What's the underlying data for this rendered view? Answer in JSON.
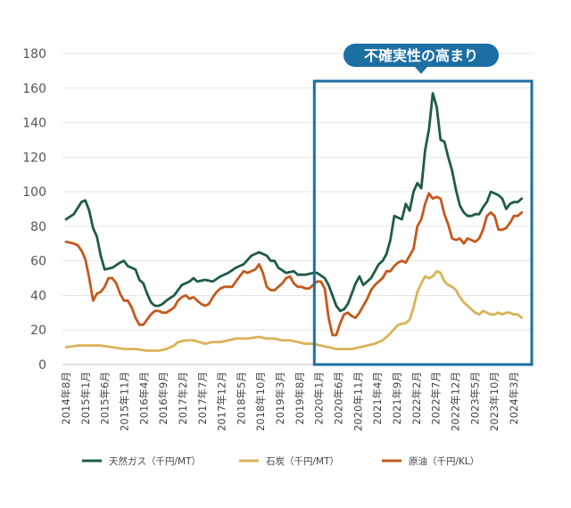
{
  "chart_data": {
    "type": "line",
    "title": "",
    "xlabel": "",
    "ylabel": "",
    "ylim": [
      0,
      180
    ],
    "yticks": [
      0,
      20,
      40,
      60,
      80,
      100,
      120,
      140,
      160,
      180
    ],
    "grid": true,
    "legend_position": "bottom",
    "x_start": "2014-08",
    "x_end": "2024-07",
    "x_tick_labels": [
      "2014年8月",
      "2015年1月",
      "2015年6月",
      "2015年11月",
      "2016年4月",
      "2016年9月",
      "2017年2月",
      "2017年7月",
      "2017年12月",
      "2018年5月",
      "2018年10月",
      "2019年3月",
      "2019年8月",
      "2020年1月",
      "2020年6月",
      "2020年11月",
      "2021年4月",
      "2021年9月",
      "2022年2月",
      "2022年7月",
      "2022年12月",
      "2023年5月",
      "2023年10月",
      "2024年3月"
    ],
    "series": [
      {
        "name": "天然ガス（千円/MT）",
        "color": "#1e5c47",
        "points": [
          [
            "2014-08",
            84
          ],
          [
            "2014-10",
            87
          ],
          [
            "2014-12",
            94
          ],
          [
            "2015-01",
            95
          ],
          [
            "2015-02",
            89
          ],
          [
            "2015-03",
            79
          ],
          [
            "2015-04",
            74
          ],
          [
            "2015-05",
            63
          ],
          [
            "2015-06",
            55
          ],
          [
            "2015-08",
            56
          ],
          [
            "2015-10",
            59
          ],
          [
            "2015-11",
            60
          ],
          [
            "2015-12",
            57
          ],
          [
            "2016-02",
            55
          ],
          [
            "2016-03",
            49
          ],
          [
            "2016-04",
            47
          ],
          [
            "2016-05",
            41
          ],
          [
            "2016-06",
            36
          ],
          [
            "2016-07",
            34
          ],
          [
            "2016-08",
            34
          ],
          [
            "2016-09",
            35
          ],
          [
            "2016-10",
            37
          ],
          [
            "2016-12",
            40
          ],
          [
            "2017-01",
            43
          ],
          [
            "2017-02",
            46
          ],
          [
            "2017-04",
            48
          ],
          [
            "2017-05",
            50
          ],
          [
            "2017-06",
            48
          ],
          [
            "2017-08",
            49
          ],
          [
            "2017-10",
            48
          ],
          [
            "2017-12",
            51
          ],
          [
            "2018-02",
            53
          ],
          [
            "2018-04",
            56
          ],
          [
            "2018-06",
            58
          ],
          [
            "2018-08",
            63
          ],
          [
            "2018-10",
            65
          ],
          [
            "2018-12",
            63
          ],
          [
            "2019-01",
            60
          ],
          [
            "2019-02",
            60
          ],
          [
            "2019-03",
            56
          ],
          [
            "2019-05",
            53
          ],
          [
            "2019-07",
            54
          ],
          [
            "2019-08",
            52
          ],
          [
            "2019-10",
            52
          ],
          [
            "2019-12",
            53
          ],
          [
            "2020-01",
            53
          ],
          [
            "2020-03",
            50
          ],
          [
            "2020-04",
            46
          ],
          [
            "2020-05",
            40
          ],
          [
            "2020-06",
            34
          ],
          [
            "2020-07",
            31
          ],
          [
            "2020-08",
            32
          ],
          [
            "2020-09",
            35
          ],
          [
            "2020-10",
            41
          ],
          [
            "2020-11",
            47
          ],
          [
            "2020-12",
            51
          ],
          [
            "2021-01",
            46
          ],
          [
            "2021-02",
            48
          ],
          [
            "2021-03",
            50
          ],
          [
            "2021-04",
            54
          ],
          [
            "2021-05",
            58
          ],
          [
            "2021-06",
            60
          ],
          [
            "2021-07",
            64
          ],
          [
            "2021-08",
            72
          ],
          [
            "2021-09",
            86
          ],
          [
            "2021-10",
            85
          ],
          [
            "2021-11",
            84
          ],
          [
            "2021-12",
            93
          ],
          [
            "2022-01",
            89
          ],
          [
            "2022-02",
            100
          ],
          [
            "2022-03",
            105
          ],
          [
            "2022-04",
            102
          ],
          [
            "2022-05",
            124
          ],
          [
            "2022-06",
            136
          ],
          [
            "2022-07",
            157
          ],
          [
            "2022-08",
            149
          ],
          [
            "2022-09",
            130
          ],
          [
            "2022-10",
            129
          ],
          [
            "2022-11",
            120
          ],
          [
            "2022-12",
            112
          ],
          [
            "2023-01",
            101
          ],
          [
            "2023-02",
            92
          ],
          [
            "2023-03",
            88
          ],
          [
            "2023-04",
            86
          ],
          [
            "2023-05",
            86
          ],
          [
            "2023-06",
            87
          ],
          [
            "2023-07",
            87
          ],
          [
            "2023-08",
            91
          ],
          [
            "2023-09",
            94
          ],
          [
            "2023-10",
            100
          ],
          [
            "2023-11",
            99
          ],
          [
            "2023-12",
            98
          ],
          [
            "2024-01",
            96
          ],
          [
            "2024-02",
            90
          ],
          [
            "2024-03",
            93
          ],
          [
            "2024-04",
            94
          ],
          [
            "2024-05",
            94
          ],
          [
            "2024-06",
            96
          ]
        ]
      },
      {
        "name": "石炭（千円/MT）",
        "color": "#d9b356",
        "points": [
          [
            "2014-08",
            10
          ],
          [
            "2014-11",
            11
          ],
          [
            "2015-02",
            11
          ],
          [
            "2015-05",
            11
          ],
          [
            "2015-08",
            10
          ],
          [
            "2015-11",
            9
          ],
          [
            "2016-02",
            9
          ],
          [
            "2016-05",
            8
          ],
          [
            "2016-08",
            8
          ],
          [
            "2016-10",
            9
          ],
          [
            "2016-12",
            11
          ],
          [
            "2017-01",
            13
          ],
          [
            "2017-03",
            14
          ],
          [
            "2017-05",
            14
          ],
          [
            "2017-08",
            12
          ],
          [
            "2017-10",
            13
          ],
          [
            "2017-12",
            13
          ],
          [
            "2018-02",
            14
          ],
          [
            "2018-04",
            15
          ],
          [
            "2018-07",
            15
          ],
          [
            "2018-10",
            16
          ],
          [
            "2018-12",
            15
          ],
          [
            "2019-02",
            15
          ],
          [
            "2019-04",
            14
          ],
          [
            "2019-06",
            14
          ],
          [
            "2019-08",
            13
          ],
          [
            "2019-10",
            12
          ],
          [
            "2019-12",
            12
          ],
          [
            "2020-02",
            11
          ],
          [
            "2020-04",
            10
          ],
          [
            "2020-06",
            9
          ],
          [
            "2020-08",
            9
          ],
          [
            "2020-10",
            9
          ],
          [
            "2020-12",
            10
          ],
          [
            "2021-02",
            11
          ],
          [
            "2021-04",
            12
          ],
          [
            "2021-06",
            14
          ],
          [
            "2021-08",
            18
          ],
          [
            "2021-10",
            23
          ],
          [
            "2021-12",
            24
          ],
          [
            "2022-01",
            26
          ],
          [
            "2022-02",
            33
          ],
          [
            "2022-03",
            42
          ],
          [
            "2022-04",
            47
          ],
          [
            "2022-05",
            51
          ],
          [
            "2022-06",
            50
          ],
          [
            "2022-07",
            51
          ],
          [
            "2022-08",
            54
          ],
          [
            "2022-09",
            53
          ],
          [
            "2022-10",
            48
          ],
          [
            "2022-11",
            46
          ],
          [
            "2022-12",
            45
          ],
          [
            "2023-01",
            43
          ],
          [
            "2023-02",
            39
          ],
          [
            "2023-03",
            36
          ],
          [
            "2023-04",
            34
          ],
          [
            "2023-05",
            32
          ],
          [
            "2023-06",
            30
          ],
          [
            "2023-07",
            29
          ],
          [
            "2023-08",
            31
          ],
          [
            "2023-09",
            30
          ],
          [
            "2023-10",
            29
          ],
          [
            "2023-11",
            29
          ],
          [
            "2023-12",
            30
          ],
          [
            "2024-01",
            29
          ],
          [
            "2024-02",
            30
          ],
          [
            "2024-03",
            30
          ],
          [
            "2024-04",
            29
          ],
          [
            "2024-05",
            29
          ],
          [
            "2024-06",
            27
          ]
        ]
      },
      {
        "name": "原油（千円/KL）",
        "color": "#c5581c",
        "points": [
          [
            "2014-08",
            71
          ],
          [
            "2014-10",
            70
          ],
          [
            "2014-11",
            69
          ],
          [
            "2014-12",
            66
          ],
          [
            "2015-01",
            61
          ],
          [
            "2015-02",
            50
          ],
          [
            "2015-03",
            37
          ],
          [
            "2015-04",
            41
          ],
          [
            "2015-05",
            42
          ],
          [
            "2015-06",
            45
          ],
          [
            "2015-07",
            50
          ],
          [
            "2015-08",
            50
          ],
          [
            "2015-09",
            47
          ],
          [
            "2015-10",
            41
          ],
          [
            "2015-11",
            37
          ],
          [
            "2015-12",
            37
          ],
          [
            "2016-01",
            33
          ],
          [
            "2016-02",
            27
          ],
          [
            "2016-03",
            23
          ],
          [
            "2016-04",
            23
          ],
          [
            "2016-05",
            26
          ],
          [
            "2016-06",
            29
          ],
          [
            "2016-07",
            31
          ],
          [
            "2016-08",
            31
          ],
          [
            "2016-09",
            30
          ],
          [
            "2016-10",
            30
          ],
          [
            "2016-12",
            33
          ],
          [
            "2017-01",
            37
          ],
          [
            "2017-02",
            39
          ],
          [
            "2017-03",
            40
          ],
          [
            "2017-04",
            38
          ],
          [
            "2017-05",
            39
          ],
          [
            "2017-06",
            37
          ],
          [
            "2017-07",
            35
          ],
          [
            "2017-08",
            34
          ],
          [
            "2017-09",
            35
          ],
          [
            "2017-10",
            39
          ],
          [
            "2017-11",
            42
          ],
          [
            "2017-12",
            44
          ],
          [
            "2018-01",
            45
          ],
          [
            "2018-02",
            45
          ],
          [
            "2018-03",
            45
          ],
          [
            "2018-04",
            48
          ],
          [
            "2018-05",
            51
          ],
          [
            "2018-06",
            54
          ],
          [
            "2018-07",
            53
          ],
          [
            "2018-08",
            54
          ],
          [
            "2018-09",
            55
          ],
          [
            "2018-10",
            58
          ],
          [
            "2018-11",
            53
          ],
          [
            "2018-12",
            45
          ],
          [
            "2019-01",
            43
          ],
          [
            "2019-02",
            43
          ],
          [
            "2019-03",
            45
          ],
          [
            "2019-04",
            47
          ],
          [
            "2019-05",
            50
          ],
          [
            "2019-06",
            51
          ],
          [
            "2019-07",
            47
          ],
          [
            "2019-08",
            45
          ],
          [
            "2019-09",
            45
          ],
          [
            "2019-10",
            44
          ],
          [
            "2019-11",
            44
          ],
          [
            "2019-12",
            46
          ],
          [
            "2020-01",
            48
          ],
          [
            "2020-02",
            48
          ],
          [
            "2020-03",
            44
          ],
          [
            "2020-04",
            27
          ],
          [
            "2020-05",
            17
          ],
          [
            "2020-06",
            17
          ],
          [
            "2020-07",
            24
          ],
          [
            "2020-08",
            29
          ],
          [
            "2020-09",
            30
          ],
          [
            "2020-10",
            28
          ],
          [
            "2020-11",
            27
          ],
          [
            "2020-12",
            30
          ],
          [
            "2021-01",
            34
          ],
          [
            "2021-02",
            38
          ],
          [
            "2021-03",
            43
          ],
          [
            "2021-04",
            46
          ],
          [
            "2021-05",
            48
          ],
          [
            "2021-06",
            50
          ],
          [
            "2021-07",
            54
          ],
          [
            "2021-08",
            54
          ],
          [
            "2021-09",
            57
          ],
          [
            "2021-10",
            59
          ],
          [
            "2021-11",
            60
          ],
          [
            "2021-12",
            59
          ],
          [
            "2022-01",
            63
          ],
          [
            "2022-02",
            67
          ],
          [
            "2022-03",
            80
          ],
          [
            "2022-04",
            84
          ],
          [
            "2022-05",
            93
          ],
          [
            "2022-06",
            99
          ],
          [
            "2022-07",
            96
          ],
          [
            "2022-08",
            97
          ],
          [
            "2022-09",
            96
          ],
          [
            "2022-10",
            87
          ],
          [
            "2022-11",
            81
          ],
          [
            "2022-12",
            73
          ],
          [
            "2023-01",
            72
          ],
          [
            "2023-02",
            73
          ],
          [
            "2023-03",
            70
          ],
          [
            "2023-04",
            73
          ],
          [
            "2023-05",
            72
          ],
          [
            "2023-06",
            71
          ],
          [
            "2023-07",
            73
          ],
          [
            "2023-08",
            78
          ],
          [
            "2023-09",
            86
          ],
          [
            "2023-10",
            88
          ],
          [
            "2023-11",
            86
          ],
          [
            "2023-12",
            78
          ],
          [
            "2024-01",
            78
          ],
          [
            "2024-02",
            79
          ],
          [
            "2024-03",
            82
          ],
          [
            "2024-04",
            86
          ],
          [
            "2024-05",
            86
          ],
          [
            "2024-06",
            88
          ]
        ]
      }
    ],
    "annotation": {
      "label": "不確実性の高まり",
      "x_start": "2020-01",
      "x_end": "2024-07",
      "y_bottom": 0,
      "y_top": 164,
      "color": "#1c6fa3"
    }
  }
}
